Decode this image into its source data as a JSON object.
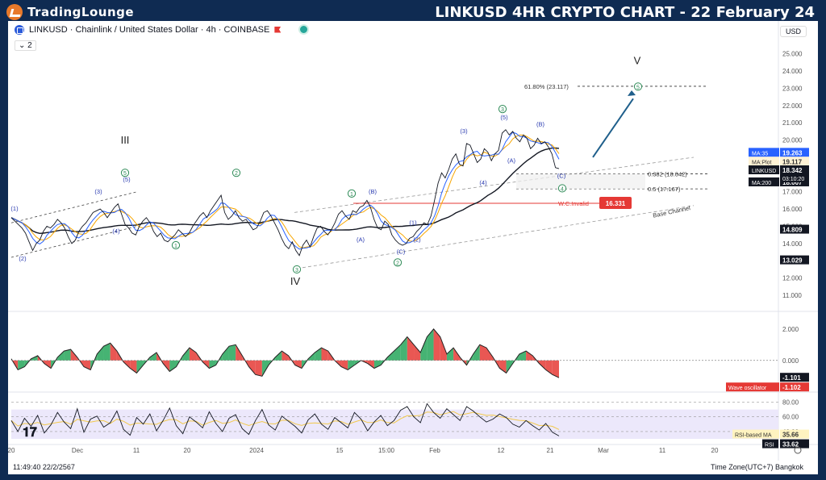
{
  "banner": {
    "logo_text": "TradingLounge",
    "title": "LINKUSD 4HR CRYPTO CHART - 22 February 24"
  },
  "header": {
    "symbol_line": "LINKUSD · Chainlink / United States Dollar · 4h · COINBASE",
    "indicator_count": "2",
    "currency": "USD"
  },
  "footer": {
    "clock": "11:49:40 22/2/2567",
    "timezone": "Time Zone(UTC+7) Bangkok"
  },
  "colors": {
    "price_line": "#131722",
    "ma35": "#2962ff",
    "ma_plot": "#f7a600",
    "ma200": "#131722",
    "bull": "#26a65b",
    "bear": "#e53935",
    "rsi": "#131722",
    "rsi_ma": "#f2c94c",
    "rsi_band": "#ece8fb",
    "wave_green": "#2e8b57",
    "wave_blue": "#2a3bb0",
    "arrow": "#1f5f8b",
    "invalid": "#e53935"
  },
  "chart_data": [
    {
      "type": "line",
      "title": "LINKUSD · Chainlink / United States Dollar · 4h · COINBASE",
      "ylim": [
        11,
        25.5
      ],
      "y_ticks": [
        "25.000",
        "24.000",
        "23.000",
        "22.000",
        "21.000",
        "20.000",
        "19.000",
        "18.000",
        "17.000",
        "16.000",
        "15.000",
        "14.000",
        "13.000",
        "12.000",
        "11.000"
      ],
      "x_ticks": [
        "20",
        "Dec",
        "11",
        "20",
        "2024",
        "15",
        "15:00",
        "Feb",
        "12",
        "21",
        "Mar",
        "11",
        "20"
      ],
      "price": [
        15.5,
        15.3,
        15.1,
        14.9,
        14.6,
        14.1,
        13.6,
        14.0,
        14.2,
        14.7,
        15.0,
        14.9,
        15.1,
        15.4,
        15.2,
        14.9,
        14.4,
        14.0,
        14.2,
        14.7,
        15.0,
        15.2,
        15.5,
        15.8,
        15.9,
        16.0,
        15.8,
        15.5,
        15.8,
        16.1,
        16.3,
        15.7,
        15.1,
        14.9,
        14.6,
        14.5,
        15.0,
        15.3,
        15.5,
        15.2,
        14.7,
        14.4,
        14.6,
        14.2,
        14.1,
        14.3,
        14.5,
        14.8,
        14.6,
        14.4,
        14.6,
        15.0,
        15.3,
        15.6,
        15.8,
        15.5,
        15.9,
        16.2,
        16.5,
        16.8,
        15.8,
        15.4,
        15.6,
        15.9,
        15.5,
        15.3,
        15.4,
        15.1,
        14.8,
        14.9,
        15.3,
        15.8,
        15.9,
        15.6,
        15.2,
        14.8,
        14.3,
        13.9,
        13.7,
        14.1,
        13.6,
        13.3,
        13.9,
        14.2,
        13.8,
        14.4,
        14.9,
        15.0,
        14.7,
        14.5,
        14.8,
        15.2,
        15.7,
        15.9,
        15.6,
        15.4,
        15.9,
        15.8,
        16.1,
        16.2,
        16.5,
        16.1,
        15.4,
        14.9,
        14.8,
        15.3,
        15.1,
        14.5,
        14.2,
        14.0,
        13.9,
        14.0,
        14.3,
        14.4,
        14.7,
        14.9,
        15.2,
        15.1,
        15.6,
        16.5,
        17.5,
        18.1,
        17.8,
        18.3,
        18.9,
        19.2,
        18.6,
        18.5,
        19.8,
        19.7,
        19.2,
        18.7,
        18.9,
        19.5,
        19.3,
        18.8,
        19.2,
        19.4,
        20.4,
        20.6,
        20.3,
        20.5,
        20.1,
        19.9,
        20.3,
        20.1,
        19.5,
        19.7,
        20.1,
        19.8,
        19.9,
        19.6,
        19.2,
        18.4,
        18.34
      ],
      "ma_lines": [
        {
          "name": "MA:35",
          "last": "19.263"
        },
        {
          "name": "MA:Plot",
          "last": "19.117"
        },
        {
          "name": "MA:200",
          "last": "18.007"
        }
      ],
      "last_price": "18.342",
      "countdown": "03:10:20",
      "price_tags": [
        "14.809",
        "13.029"
      ],
      "fib_levels": [
        {
          "label": "61.80% (23.117)",
          "value": 23.117
        },
        {
          "label": "0.382 (18.042)",
          "value": 18.042
        },
        {
          "label": "0.5 (17.167)",
          "value": 17.167
        }
      ],
      "invalidation": {
        "label": "W.C.Invalid",
        "value": 16.331,
        "tag": "16.331"
      },
      "channel_label": "Base Channel",
      "wave_labels": {
        "major": [
          "III",
          "IV",
          "V"
        ],
        "circled": [
          "1",
          "2",
          "3",
          "4",
          "5",
          "A",
          "B",
          "C"
        ],
        "minor": [
          "(1)",
          "(2)",
          "(3)",
          "(4)",
          "(5)",
          "(A)",
          "(B)",
          "(C)"
        ]
      }
    },
    {
      "type": "area",
      "title": "Wave oscillator",
      "series_name": "Wave oscillator",
      "ylim": [
        -1.5,
        2.5
      ],
      "y_ticks": [
        "2.000",
        "0.000"
      ],
      "last_values": [
        "-1.101",
        "-1.102"
      ],
      "values": [
        0.1,
        -0.6,
        -0.4,
        0.1,
        0.3,
        -0.2,
        -0.5,
        0.2,
        0.6,
        0.7,
        0.2,
        -0.4,
        -0.6,
        0.4,
        0.9,
        1.1,
        0.6,
        -0.1,
        -0.5,
        -0.8,
        -0.3,
        0.2,
        0.5,
        -0.2,
        -0.7,
        -0.4,
        0.3,
        0.8,
        0.5,
        -0.1,
        -0.5,
        -0.3,
        0.4,
        0.9,
        1.0,
        0.3,
        -0.4,
        -0.9,
        -1.0,
        -0.3,
        0.2,
        0.6,
        0.3,
        -0.3,
        -0.5,
        0.1,
        0.5,
        0.8,
        0.6,
        0.0,
        -0.4,
        -0.6,
        -0.3,
        0.0,
        -0.2,
        -0.5,
        -0.3,
        0.2,
        0.6,
        1.0,
        1.5,
        1.0,
        0.5,
        1.5,
        2.0,
        1.5,
        0.4,
        0.8,
        0.2,
        -0.3,
        0.4,
        1.0,
        0.8,
        0.2,
        -0.5,
        -0.8,
        -0.2,
        0.4,
        0.6,
        0.3,
        -0.2,
        -0.6,
        -0.9,
        -1.1
      ]
    },
    {
      "type": "line",
      "title": "RSI",
      "ylim": [
        30,
        85
      ],
      "y_ticks": [
        "80.00",
        "60.00",
        "40.00"
      ],
      "series": [
        {
          "name": "RSI-based MA",
          "last": "35.66"
        },
        {
          "name": "RSI",
          "last": "33.62"
        }
      ],
      "rsi": [
        55,
        40,
        58,
        47,
        62,
        38,
        49,
        66,
        53,
        44,
        71,
        39,
        57,
        61,
        46,
        52,
        68,
        43,
        35,
        59,
        50,
        64,
        41,
        55,
        72,
        48,
        37,
        60,
        53,
        45,
        67,
        51,
        40,
        58,
        63,
        44,
        36,
        55,
        70,
        49,
        42,
        61,
        54,
        47,
        38,
        56,
        64,
        50,
        43,
        59,
        52,
        45,
        66,
        57,
        41,
        53,
        62,
        48,
        55,
        69,
        74,
        60,
        52,
        78,
        66,
        58,
        71,
        63,
        55,
        74,
        68,
        60,
        53,
        57,
        64,
        59,
        50,
        46,
        55,
        48,
        42,
        51,
        39,
        34
      ]
    }
  ]
}
